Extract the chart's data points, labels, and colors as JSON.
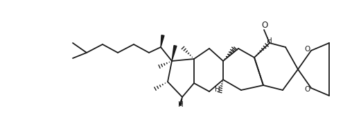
{
  "background": "#ffffff",
  "line_color": "#1a1a1a",
  "line_width": 1.3,
  "text_color": "#1a1a1a",
  "font_size": 7.5,
  "figsize": [
    5.08,
    1.89
  ],
  "dpi": 100,
  "xlim": [
    0,
    508
  ],
  "ylim": [
    0,
    189
  ]
}
